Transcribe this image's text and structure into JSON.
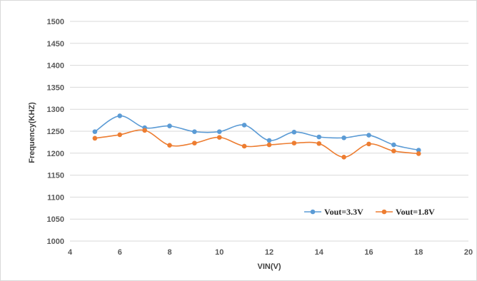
{
  "chart_data": {
    "type": "line",
    "title": "",
    "xlabel": "VIN(V)",
    "ylabel": "Frequency(KHZ)",
    "xlim": [
      4,
      20
    ],
    "ylim": [
      1000,
      1500
    ],
    "xticks": [
      4,
      6,
      8,
      10,
      12,
      14,
      16,
      18,
      20
    ],
    "yticks": [
      1000,
      1050,
      1100,
      1150,
      1200,
      1250,
      1300,
      1350,
      1400,
      1450,
      1500
    ],
    "grid": true,
    "legend_position": "bottom-right",
    "x": [
      5,
      6,
      7,
      8,
      9,
      10,
      11,
      12,
      13,
      14,
      15,
      16,
      17,
      18
    ],
    "series": [
      {
        "name": "Vout=3.3V",
        "color": "#5b9bd5",
        "values": [
          1249,
          1285,
          1258,
          1262,
          1249,
          1249,
          1264,
          1229,
          1248,
          1237,
          1235,
          1241,
          1219,
          1207
        ]
      },
      {
        "name": "Vout=1.8V",
        "color": "#ed7d31",
        "values": [
          1234,
          1242,
          1252,
          1218,
          1223,
          1236,
          1216,
          1219,
          1223,
          1222,
          1191,
          1221,
          1205,
          1199
        ]
      }
    ]
  }
}
